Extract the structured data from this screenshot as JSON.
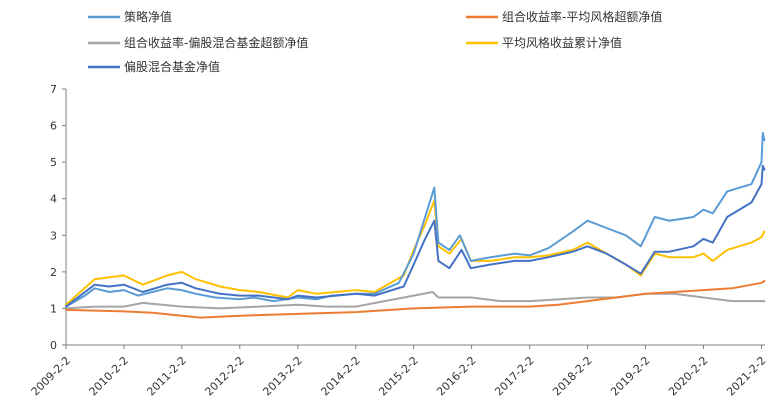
{
  "chart_data": {
    "type": "line",
    "title": "",
    "xlabel": "",
    "ylabel": "",
    "ylim": [
      0,
      7
    ],
    "yticks": [
      0,
      1,
      2,
      3,
      4,
      5,
      6,
      7
    ],
    "xticks": [
      "2009-2-2",
      "2010-2-2",
      "2011-2-2",
      "2012-2-2",
      "2013-2-2",
      "2014-2-2",
      "2015-2-2",
      "2016-2-2",
      "2017-2-2",
      "2018-2-2",
      "2019-2-2",
      "2020-2-2",
      "2021-2-2"
    ],
    "grid": false,
    "legend_position": "top",
    "series": [
      {
        "name": "策略净值",
        "color": "#5B9BD5",
        "points": [
          [
            "2009-02-02",
            1.05
          ],
          [
            "2009-06-01",
            1.35
          ],
          [
            "2009-08-01",
            1.55
          ],
          [
            "2009-11-01",
            1.45
          ],
          [
            "2010-02-02",
            1.5
          ],
          [
            "2010-05-01",
            1.35
          ],
          [
            "2010-08-01",
            1.45
          ],
          [
            "2010-11-01",
            1.55
          ],
          [
            "2011-02-02",
            1.5
          ],
          [
            "2011-05-01",
            1.4
          ],
          [
            "2011-09-01",
            1.3
          ],
          [
            "2012-02-02",
            1.25
          ],
          [
            "2012-05-01",
            1.3
          ],
          [
            "2012-09-01",
            1.2
          ],
          [
            "2013-02-02",
            1.3
          ],
          [
            "2013-06-01",
            1.25
          ],
          [
            "2013-09-01",
            1.35
          ],
          [
            "2014-02-02",
            1.4
          ],
          [
            "2014-06-01",
            1.4
          ],
          [
            "2014-11-01",
            1.7
          ],
          [
            "2015-02-02",
            2.5
          ],
          [
            "2015-04-15",
            3.5
          ],
          [
            "2015-06-12",
            4.3
          ],
          [
            "2015-07-08",
            2.8
          ],
          [
            "2015-09-15",
            2.6
          ],
          [
            "2015-11-20",
            3.0
          ],
          [
            "2016-01-28",
            2.3
          ],
          [
            "2016-06-01",
            2.4
          ],
          [
            "2016-11-01",
            2.5
          ],
          [
            "2017-02-02",
            2.45
          ],
          [
            "2017-06-01",
            2.65
          ],
          [
            "2017-11-01",
            3.1
          ],
          [
            "2018-02-02",
            3.4
          ],
          [
            "2018-06-01",
            3.2
          ],
          [
            "2018-10-01",
            3.0
          ],
          [
            "2019-01-03",
            2.7
          ],
          [
            "2019-04-01",
            3.5
          ],
          [
            "2019-07-01",
            3.4
          ],
          [
            "2019-12-01",
            3.5
          ],
          [
            "2020-02-02",
            3.7
          ],
          [
            "2020-04-01",
            3.6
          ],
          [
            "2020-07-01",
            4.2
          ],
          [
            "2020-12-01",
            4.4
          ],
          [
            "2021-02-02",
            5.0
          ],
          [
            "2021-02-10",
            5.8
          ],
          [
            "2021-02-20",
            5.6
          ]
        ]
      },
      {
        "name": "组合收益率-平均风格超额净值",
        "color": "#ED7D31",
        "points": [
          [
            "2009-02-02",
            0.96
          ],
          [
            "2010-02-02",
            0.92
          ],
          [
            "2010-08-01",
            0.88
          ],
          [
            "2011-02-02",
            0.8
          ],
          [
            "2011-06-01",
            0.75
          ],
          [
            "2012-02-02",
            0.8
          ],
          [
            "2013-02-02",
            0.85
          ],
          [
            "2014-02-02",
            0.9
          ],
          [
            "2015-02-02",
            1.0
          ],
          [
            "2016-02-02",
            1.05
          ],
          [
            "2017-02-02",
            1.05
          ],
          [
            "2017-08-01",
            1.1
          ],
          [
            "2018-02-02",
            1.2
          ],
          [
            "2018-08-01",
            1.3
          ],
          [
            "2019-02-02",
            1.4
          ],
          [
            "2019-08-01",
            1.45
          ],
          [
            "2020-02-02",
            1.5
          ],
          [
            "2020-08-01",
            1.55
          ],
          [
            "2021-02-02",
            1.7
          ],
          [
            "2021-02-20",
            1.75
          ]
        ]
      },
      {
        "name": "组合收益率-偏股混合基金超额净值",
        "color": "#A5A5A5",
        "points": [
          [
            "2009-02-02",
            1.0
          ],
          [
            "2009-08-01",
            1.05
          ],
          [
            "2010-02-02",
            1.05
          ],
          [
            "2010-06-01",
            1.15
          ],
          [
            "2011-02-02",
            1.05
          ],
          [
            "2011-10-01",
            1.0
          ],
          [
            "2012-06-01",
            1.05
          ],
          [
            "2013-02-02",
            1.1
          ],
          [
            "2013-08-01",
            1.05
          ],
          [
            "2014-02-02",
            1.05
          ],
          [
            "2015-02-02",
            1.35
          ],
          [
            "2015-06-01",
            1.45
          ],
          [
            "2015-07-08",
            1.3
          ],
          [
            "2016-02-02",
            1.3
          ],
          [
            "2016-08-01",
            1.2
          ],
          [
            "2017-02-02",
            1.2
          ],
          [
            "2018-02-02",
            1.3
          ],
          [
            "2018-08-01",
            1.3
          ],
          [
            "2019-02-02",
            1.4
          ],
          [
            "2019-08-01",
            1.4
          ],
          [
            "2020-02-02",
            1.3
          ],
          [
            "2020-08-01",
            1.2
          ],
          [
            "2021-02-02",
            1.2
          ],
          [
            "2021-02-20",
            1.2
          ]
        ]
      },
      {
        "name": "平均风格收益累计净值",
        "color": "#FFC000",
        "points": [
          [
            "2009-02-02",
            1.1
          ],
          [
            "2009-08-01",
            1.8
          ],
          [
            "2009-11-01",
            1.85
          ],
          [
            "2010-02-02",
            1.9
          ],
          [
            "2010-06-01",
            1.65
          ],
          [
            "2010-11-01",
            1.9
          ],
          [
            "2011-02-02",
            2.0
          ],
          [
            "2011-05-01",
            1.8
          ],
          [
            "2011-10-01",
            1.6
          ],
          [
            "2012-02-02",
            1.5
          ],
          [
            "2012-06-01",
            1.45
          ],
          [
            "2012-12-01",
            1.3
          ],
          [
            "2013-02-02",
            1.5
          ],
          [
            "2013-06-01",
            1.4
          ],
          [
            "2014-02-02",
            1.5
          ],
          [
            "2014-06-01",
            1.45
          ],
          [
            "2014-12-01",
            1.9
          ],
          [
            "2015-02-02",
            2.6
          ],
          [
            "2015-04-15",
            3.3
          ],
          [
            "2015-06-12",
            3.95
          ],
          [
            "2015-07-08",
            2.7
          ],
          [
            "2015-09-15",
            2.5
          ],
          [
            "2015-12-01",
            2.9
          ],
          [
            "2016-01-28",
            2.3
          ],
          [
            "2016-06-01",
            2.3
          ],
          [
            "2016-11-01",
            2.4
          ],
          [
            "2017-02-02",
            2.4
          ],
          [
            "2017-06-01",
            2.45
          ],
          [
            "2017-11-01",
            2.6
          ],
          [
            "2018-02-02",
            2.8
          ],
          [
            "2018-06-01",
            2.5
          ],
          [
            "2018-10-01",
            2.2
          ],
          [
            "2019-01-03",
            1.9
          ],
          [
            "2019-04-01",
            2.5
          ],
          [
            "2019-07-01",
            2.4
          ],
          [
            "2019-12-01",
            2.4
          ],
          [
            "2020-02-02",
            2.5
          ],
          [
            "2020-04-01",
            2.3
          ],
          [
            "2020-07-01",
            2.6
          ],
          [
            "2020-12-01",
            2.8
          ],
          [
            "2021-02-02",
            2.95
          ],
          [
            "2021-02-20",
            3.1
          ]
        ]
      },
      {
        "name": "偏股混合基金净值",
        "color": "#4472C4",
        "points": [
          [
            "2009-02-02",
            1.05
          ],
          [
            "2009-08-01",
            1.65
          ],
          [
            "2009-11-01",
            1.6
          ],
          [
            "2010-02-02",
            1.65
          ],
          [
            "2010-06-01",
            1.45
          ],
          [
            "2010-11-01",
            1.65
          ],
          [
            "2011-02-02",
            1.7
          ],
          [
            "2011-05-01",
            1.55
          ],
          [
            "2011-10-01",
            1.4
          ],
          [
            "2012-02-02",
            1.35
          ],
          [
            "2012-06-01",
            1.35
          ],
          [
            "2012-12-01",
            1.25
          ],
          [
            "2013-02-02",
            1.35
          ],
          [
            "2013-06-01",
            1.3
          ],
          [
            "2014-02-02",
            1.4
          ],
          [
            "2014-06-01",
            1.35
          ],
          [
            "2014-12-01",
            1.6
          ],
          [
            "2015-02-02",
            2.2
          ],
          [
            "2015-04-15",
            2.9
          ],
          [
            "2015-06-12",
            3.4
          ],
          [
            "2015-07-08",
            2.3
          ],
          [
            "2015-09-15",
            2.1
          ],
          [
            "2015-12-01",
            2.6
          ],
          [
            "2016-01-28",
            2.1
          ],
          [
            "2016-06-01",
            2.2
          ],
          [
            "2016-11-01",
            2.3
          ],
          [
            "2017-02-02",
            2.3
          ],
          [
            "2017-06-01",
            2.4
          ],
          [
            "2017-11-01",
            2.55
          ],
          [
            "2018-02-02",
            2.7
          ],
          [
            "2018-06-01",
            2.5
          ],
          [
            "2018-10-01",
            2.2
          ],
          [
            "2019-01-03",
            1.95
          ],
          [
            "2019-04-01",
            2.55
          ],
          [
            "2019-07-01",
            2.55
          ],
          [
            "2019-12-01",
            2.7
          ],
          [
            "2020-02-02",
            2.9
          ],
          [
            "2020-04-01",
            2.8
          ],
          [
            "2020-07-01",
            3.5
          ],
          [
            "2020-12-01",
            3.9
          ],
          [
            "2021-02-02",
            4.4
          ],
          [
            "2021-02-10",
            4.9
          ],
          [
            "2021-02-20",
            4.8
          ]
        ]
      }
    ]
  }
}
